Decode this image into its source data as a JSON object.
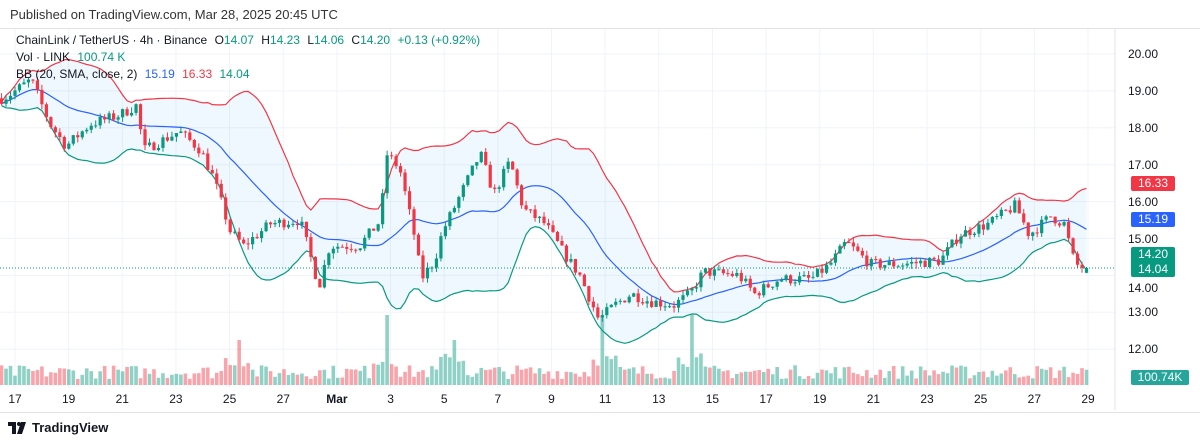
{
  "published": "Published on TradingView.com, Mar 28, 2025 20:45 UTC",
  "legend": {
    "symbol": "ChainLink / TetherUS · 4h · Binance",
    "o_label": "O",
    "o": "14.07",
    "h_label": "H",
    "h": "14.23",
    "l_label": "L",
    "l": "14.06",
    "c_label": "C",
    "c": "14.20",
    "change": "+0.13 (+0.92%)",
    "vol_label": "Vol · LINK",
    "vol": "100.74 K",
    "bb_label": "BB (20, SMA, close, 2)",
    "bb_basis": "15.19",
    "bb_upper": "16.33",
    "bb_lower": "14.04"
  },
  "price_axis": [
    "20.00",
    "19.00",
    "18.00",
    "17.00",
    "16.00",
    "15.00",
    "14.00",
    "13.00",
    "12.00"
  ],
  "price_tags": {
    "upper": "16.33",
    "basis": "15.19",
    "close": "14.20",
    "lower": "14.04",
    "volume": "100.74K"
  },
  "time_axis": [
    "17",
    "19",
    "21",
    "23",
    "25",
    "27",
    "Mar",
    "3",
    "5",
    "7",
    "9",
    "11",
    "13",
    "15",
    "17",
    "19",
    "21",
    "23",
    "25",
    "27",
    "29"
  ],
  "logo": "TradingView",
  "colors": {
    "up": "#089981",
    "down": "#f23645",
    "basis": "#2962ff",
    "upper": "#f23645",
    "lower": "#089981"
  },
  "chart_data": {
    "type": "candlestick",
    "interval": "4h",
    "note": "approximate close path, [days since Feb 17, price]",
    "keypoints": [
      [
        -0.5,
        18.8
      ],
      [
        -0.2,
        18.9
      ],
      [
        0.6,
        19.3
      ],
      [
        1.3,
        18.1
      ],
      [
        1.9,
        17.5
      ],
      [
        2.8,
        18.1
      ],
      [
        3.9,
        18.35
      ],
      [
        4.5,
        18.6
      ],
      [
        4.8,
        17.4
      ],
      [
        6.1,
        17.9
      ],
      [
        6.9,
        17.4
      ],
      [
        7.4,
        16.6
      ],
      [
        8.0,
        15.2
      ],
      [
        8.5,
        14.8
      ],
      [
        9.5,
        15.4
      ],
      [
        10.6,
        15.5
      ],
      [
        11.3,
        13.7
      ],
      [
        11.7,
        14.8
      ],
      [
        12.8,
        14.8
      ],
      [
        13.6,
        15.5
      ],
      [
        13.8,
        17.3
      ],
      [
        14.3,
        16.9
      ],
      [
        14.9,
        14.9
      ],
      [
        15.1,
        13.9
      ],
      [
        15.6,
        14.4
      ],
      [
        15.9,
        15.2
      ],
      [
        16.7,
        16.4
      ],
      [
        17.3,
        17.3
      ],
      [
        17.8,
        16.2
      ],
      [
        18.4,
        17.1
      ],
      [
        18.9,
        15.8
      ],
      [
        19.7,
        15.4
      ],
      [
        20.4,
        14.6
      ],
      [
        21.0,
        14.0
      ],
      [
        21.7,
        12.8
      ],
      [
        22.3,
        13.2
      ],
      [
        22.9,
        13.5
      ],
      [
        23.6,
        13.3
      ],
      [
        24.5,
        13.2
      ],
      [
        25.1,
        13.5
      ],
      [
        25.6,
        14.1
      ],
      [
        26.9,
        14.0
      ],
      [
        27.5,
        13.5
      ],
      [
        28.4,
        13.9
      ],
      [
        29.6,
        13.9
      ],
      [
        30.3,
        14.3
      ],
      [
        30.9,
        14.9
      ],
      [
        31.8,
        14.3
      ],
      [
        32.9,
        14.3
      ],
      [
        34.4,
        14.4
      ],
      [
        35.1,
        15.1
      ],
      [
        36.2,
        15.4
      ],
      [
        37.2,
        15.9
      ],
      [
        37.7,
        15.1
      ],
      [
        38.5,
        15.6
      ],
      [
        39.0,
        15.4
      ],
      [
        39.4,
        14.3
      ],
      [
        39.8,
        14.2
      ]
    ],
    "volume_spikes_days": [
      8.3,
      13.8,
      16.3,
      21.9,
      25.1
    ],
    "y_range": [
      11.5,
      20.5
    ]
  }
}
